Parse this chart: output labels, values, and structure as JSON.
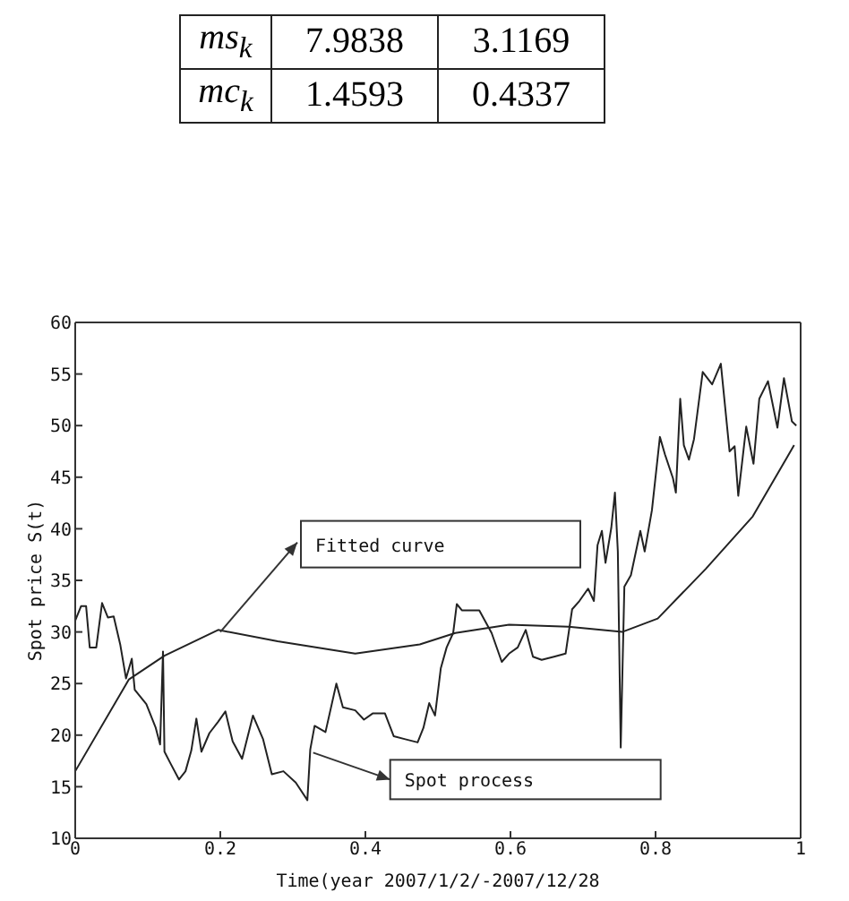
{
  "chart_data": {
    "type": "line",
    "xlabel": "Time(year 2007/1/2/-2007/12/28",
    "ylabel": "Spot price S(t)",
    "xlim": [
      0,
      1
    ],
    "xticks": [
      0,
      0.2,
      0.4,
      0.6,
      0.8,
      1
    ],
    "ylim": [
      10,
      60
    ],
    "yticks": [
      10,
      15,
      20,
      25,
      30,
      35,
      40,
      45,
      50,
      55,
      60
    ],
    "marker": "none",
    "line_style": "solid",
    "series": [
      {
        "color": "#222222",
        "x": [
          0,
          0.008,
          0.015,
          0.02,
          0.029,
          0.037,
          0.045,
          0.053,
          0.062,
          0.07,
          0.078,
          0.082,
          0.098,
          0.111,
          0.117,
          0.121,
          0.123,
          0.131,
          0.143,
          0.152,
          0.16,
          0.167,
          0.174,
          0.185,
          0.197,
          0.207,
          0.217,
          0.23,
          0.245,
          0.259,
          0.271,
          0.287,
          0.304,
          0.32,
          0.324,
          0.33,
          0.345,
          0.36,
          0.369,
          0.386,
          0.398,
          0.41,
          0.427,
          0.439,
          0.455,
          0.472,
          0.48,
          0.488,
          0.496,
          0.504,
          0.512,
          0.521,
          0.526,
          0.533,
          0.557,
          0.574,
          0.588,
          0.598,
          0.61,
          0.621,
          0.631,
          0.643,
          0.66,
          0.676,
          0.685,
          0.695,
          0.707,
          0.715,
          0.72,
          0.726,
          0.731,
          0.739,
          0.744,
          0.748,
          0.752,
          0.757,
          0.766,
          0.779,
          0.785,
          0.795,
          0.806,
          0.813,
          0.824,
          0.828,
          0.834,
          0.839,
          0.846,
          0.853,
          0.865,
          0.878,
          0.89,
          0.902,
          0.909,
          0.914,
          0.925,
          0.935,
          0.943,
          0.955,
          0.968,
          0.977,
          0.988,
          0.994
        ],
        "values": [
          31.1,
          32.5,
          32.5,
          28.5,
          28.5,
          32.8,
          31.4,
          31.5,
          28.8,
          25.5,
          27.4,
          24.4,
          23,
          20.7,
          19.1,
          28.1,
          18.4,
          17.3,
          15.7,
          16.5,
          18.5,
          21.6,
          18.4,
          20.2,
          21.3,
          22.3,
          19.4,
          17.7,
          21.9,
          19.6,
          16.2,
          16.5,
          15.4,
          13.7,
          18.6,
          20.9,
          20.3,
          25,
          22.7,
          22.4,
          21.5,
          22.1,
          22.1,
          19.9,
          19.6,
          19.3,
          20.7,
          23.1,
          21.9,
          26.5,
          28.5,
          29.9,
          32.7,
          32.1,
          32.1,
          29.9,
          27.1,
          27.9,
          28.5,
          30.2,
          27.6,
          27.3,
          27.6,
          27.9,
          32.2,
          33,
          34.2,
          33,
          38.4,
          39.8,
          36.7,
          40.1,
          43.5,
          37.8,
          18.8,
          34.4,
          35.5,
          39.8,
          37.8,
          41.8,
          48.9,
          47.2,
          44.9,
          43.5,
          52.6,
          48.1,
          46.7,
          48.7,
          55.2,
          54,
          56,
          47.5,
          48,
          43.2,
          49.9,
          46.3,
          52.6,
          54.3,
          49.8,
          54.6,
          50.4,
          50
        ]
      },
      {
        "color": "#222222",
        "x": [
          0,
          0.074,
          0.123,
          0.197,
          0.279,
          0.386,
          0.475,
          0.524,
          0.598,
          0.68,
          0.754,
          0.803,
          0.869,
          0.934,
          0.991
        ],
        "values": [
          16.5,
          25.4,
          27.7,
          30.2,
          29.1,
          27.9,
          28.8,
          29.9,
          30.7,
          30.5,
          30,
          31.3,
          36.1,
          41.2,
          48.1
        ]
      }
    ],
    "annotations": [
      {
        "text": "Fitted curve",
        "x": 0.2,
        "y": 30
      },
      {
        "text": "Spot process",
        "x": 0.328,
        "y": 18.3
      },
      "ms$_{k}$ 7.9838 3.1169",
      "mc$_{k}$ 1.4593 0.4337"
    ]
  }
}
